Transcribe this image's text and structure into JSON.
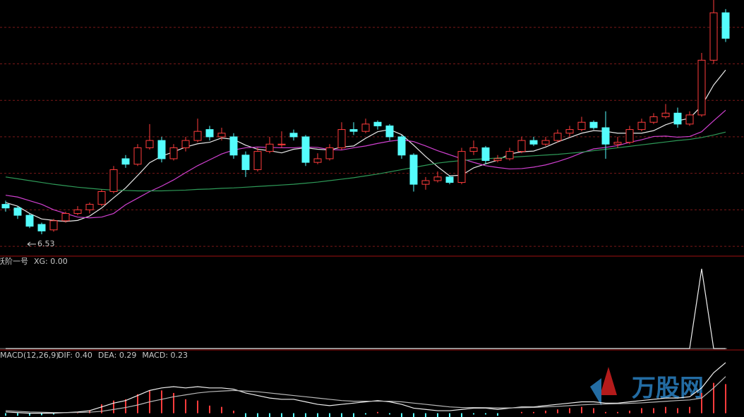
{
  "chart_data": [
    {
      "type": "candlestick",
      "ohlc": [
        [
          7.35,
          7.45,
          7.15,
          7.25
        ],
        [
          7.25,
          7.3,
          6.95,
          7.05
        ],
        [
          7.05,
          7.1,
          6.7,
          6.75
        ],
        [
          6.8,
          6.85,
          6.53,
          6.62
        ],
        [
          6.65,
          6.95,
          6.6,
          6.9
        ],
        [
          6.9,
          7.15,
          6.85,
          7.1
        ],
        [
          7.1,
          7.3,
          7.05,
          7.2
        ],
        [
          7.2,
          7.4,
          7.1,
          7.35
        ],
        [
          7.35,
          7.75,
          7.3,
          7.7
        ],
        [
          7.7,
          8.4,
          7.65,
          8.3
        ],
        [
          8.6,
          8.7,
          8.35,
          8.45
        ],
        [
          8.45,
          9.0,
          8.4,
          8.9
        ],
        [
          8.9,
          9.55,
          8.85,
          9.1
        ],
        [
          9.1,
          9.2,
          8.5,
          8.6
        ],
        [
          8.6,
          9.0,
          8.55,
          8.9
        ],
        [
          8.9,
          9.2,
          8.8,
          9.1
        ],
        [
          9.1,
          9.7,
          9.05,
          9.35
        ],
        [
          9.4,
          9.5,
          9.1,
          9.2
        ],
        [
          9.2,
          9.45,
          9.1,
          9.3
        ],
        [
          9.2,
          9.3,
          8.6,
          8.7
        ],
        [
          8.7,
          8.8,
          8.1,
          8.3
        ],
        [
          8.3,
          8.9,
          8.25,
          8.8
        ],
        [
          8.8,
          9.2,
          8.75,
          9.0
        ],
        [
          8.98,
          9.35,
          8.9,
          9.0
        ],
        [
          9.3,
          9.4,
          9.1,
          9.2
        ],
        [
          9.2,
          9.25,
          8.4,
          8.5
        ],
        [
          8.5,
          8.75,
          8.45,
          8.6
        ],
        [
          8.6,
          9.0,
          8.55,
          8.9
        ],
        [
          8.9,
          9.6,
          8.85,
          9.4
        ],
        [
          9.4,
          9.6,
          9.25,
          9.35
        ],
        [
          9.35,
          9.7,
          9.3,
          9.55
        ],
        [
          9.6,
          9.65,
          9.4,
          9.5
        ],
        [
          9.5,
          9.55,
          9.1,
          9.2
        ],
        [
          9.2,
          9.25,
          8.6,
          8.7
        ],
        [
          8.7,
          8.75,
          7.7,
          7.9
        ],
        [
          7.9,
          8.1,
          7.75,
          8.0
        ],
        [
          8.0,
          8.25,
          7.95,
          8.1
        ],
        [
          8.1,
          8.15,
          7.9,
          7.95
        ],
        [
          7.95,
          8.9,
          7.9,
          8.8
        ],
        [
          8.8,
          9.1,
          8.7,
          8.9
        ],
        [
          8.9,
          8.95,
          8.45,
          8.55
        ],
        [
          8.55,
          8.7,
          8.5,
          8.6
        ],
        [
          8.6,
          8.9,
          8.55,
          8.8
        ],
        [
          8.8,
          9.2,
          8.75,
          9.1
        ],
        [
          9.1,
          9.2,
          8.95,
          9.0
        ],
        [
          9.0,
          9.2,
          8.95,
          9.1
        ],
        [
          9.1,
          9.4,
          9.05,
          9.3
        ],
        [
          9.3,
          9.5,
          9.2,
          9.4
        ],
        [
          9.4,
          9.75,
          9.35,
          9.6
        ],
        [
          9.6,
          9.65,
          9.4,
          9.45
        ],
        [
          9.45,
          9.9,
          8.6,
          9.0
        ],
        [
          9.0,
          9.2,
          8.9,
          9.05
        ],
        [
          9.05,
          9.5,
          9.0,
          9.4
        ],
        [
          9.4,
          9.7,
          9.35,
          9.6
        ],
        [
          9.6,
          9.85,
          9.55,
          9.75
        ],
        [
          9.75,
          10.1,
          9.7,
          9.85
        ],
        [
          9.85,
          10.0,
          9.45,
          9.55
        ],
        [
          9.55,
          9.9,
          9.5,
          9.8
        ],
        [
          9.8,
          11.5,
          9.75,
          11.3
        ],
        [
          11.3,
          12.95,
          11.2,
          12.6
        ],
        [
          12.6,
          12.7,
          11.8,
          11.9
        ]
      ],
      "up_color": "#ff3c3c",
      "down_color": "#54fcfc",
      "series": [
        {
          "color": "#e8e8e8",
          "values": [
            7.4,
            7.3,
            7.1,
            6.95,
            6.91,
            6.88,
            6.91,
            7.03,
            7.25,
            7.53,
            7.8,
            8.14,
            8.49,
            8.67,
            8.79,
            8.92,
            9.01,
            9.05,
            9.17,
            9.13,
            8.97,
            8.86,
            8.82,
            8.76,
            8.86,
            8.9,
            8.86,
            8.84,
            8.92,
            8.95,
            9.16,
            9.34,
            9.4,
            9.26,
            8.97,
            8.66,
            8.38,
            8.13,
            8.15,
            8.35,
            8.46,
            8.56,
            8.73,
            8.79,
            8.81,
            8.92,
            9.06,
            9.18,
            9.3,
            9.37,
            9.35,
            9.3,
            9.3,
            9.3,
            9.37,
            9.53,
            9.64,
            9.71,
            10.05,
            10.62,
            11.03
          ]
        },
        {
          "color": "#d040d0",
          "values": [
            7.6,
            7.55,
            7.45,
            7.35,
            7.2,
            7.1,
            7.0,
            6.98,
            7.0,
            7.1,
            7.34,
            7.52,
            7.7,
            7.85,
            8.02,
            8.22,
            8.41,
            8.57,
            8.73,
            8.84,
            8.9,
            8.92,
            8.91,
            8.9,
            8.9,
            8.92,
            8.91,
            8.85,
            8.84,
            8.9,
            8.95,
            9.02,
            9.08,
            9.12,
            9.07,
            8.95,
            8.82,
            8.71,
            8.6,
            8.5,
            8.41,
            8.36,
            8.32,
            8.33,
            8.37,
            8.43,
            8.52,
            8.63,
            8.76,
            8.87,
            8.91,
            8.96,
            9.05,
            9.12,
            9.21,
            9.22,
            9.19,
            9.21,
            9.34,
            9.64,
            9.93
          ]
        },
        {
          "color": "#2e9a58",
          "values": [
            8.1,
            8.05,
            8.0,
            7.95,
            7.9,
            7.86,
            7.82,
            7.79,
            7.76,
            7.74,
            7.73,
            7.72,
            7.72,
            7.72,
            7.73,
            7.74,
            7.76,
            7.77,
            7.79,
            7.8,
            7.82,
            7.84,
            7.86,
            7.88,
            7.9,
            7.93,
            7.96,
            8.0,
            8.04,
            8.08,
            8.13,
            8.18,
            8.24,
            8.3,
            8.36,
            8.42,
            8.48,
            8.52,
            8.55,
            8.58,
            8.6,
            8.62,
            8.64,
            8.66,
            8.68,
            8.7,
            8.72,
            8.75,
            8.78,
            8.82,
            8.86,
            8.9,
            8.94,
            8.98,
            9.02,
            9.06,
            9.1,
            9.13,
            9.18,
            9.25,
            9.33
          ]
        }
      ],
      "low_annotation": 6.53,
      "ylim": [
        5.95,
        12.95
      ],
      "yticks": [
        6.2,
        7.2,
        8.2,
        9.2,
        10.2,
        11.2,
        12.2
      ],
      "grid": true
    },
    {
      "type": "line",
      "title": "跃阶一号",
      "legend": "XG: 0.00",
      "series": [
        {
          "color": "#f0f0f0",
          "values": [
            0,
            0,
            0,
            0,
            0,
            0,
            0,
            0,
            0,
            0,
            0,
            0,
            0,
            0,
            0,
            0,
            0,
            0,
            0,
            0,
            0,
            0,
            0,
            0,
            0,
            0,
            0,
            0,
            0,
            0,
            0,
            0,
            0,
            0,
            0,
            0,
            0,
            0,
            0,
            0,
            0,
            0,
            0,
            0,
            0,
            0,
            0,
            0,
            0,
            0,
            0,
            0,
            0,
            0,
            0,
            0,
            0,
            0,
            1,
            0,
            0
          ]
        }
      ],
      "ylim": [
        0,
        1
      ]
    },
    {
      "type": "macd",
      "title": "MACD(12,26,9)",
      "legend": [
        {
          "text": "DIF: 0.40",
          "color": "#d8d8d8"
        },
        {
          "text": "DEA: 0.29",
          "color": "#d8d8d8"
        },
        {
          "text": "MACD: 0.23",
          "color": "#d040d0"
        }
      ],
      "histogram": {
        "up_color": "#ff3c3c",
        "down_color": "#54fcfc",
        "values": [
          -0.02,
          -0.02,
          -0.02,
          -0.016,
          -0.01,
          0,
          0.008,
          0.024,
          0.07,
          0.1,
          0.11,
          0.15,
          0.18,
          0.18,
          0.16,
          0.11,
          0.1,
          0.06,
          0.05,
          0.02,
          -0.03,
          -0.06,
          -0.08,
          -0.08,
          -0.06,
          -0.08,
          -0.1,
          -0.1,
          -0.06,
          -0.03,
          -0.01,
          0.01,
          -0.01,
          -0.04,
          -0.08,
          -0.08,
          -0.08,
          -0.06,
          -0.03,
          -0.01,
          -0.01,
          -0.02,
          0,
          0.01,
          0.01,
          0.02,
          0.03,
          0.04,
          0.05,
          0.04,
          0.01,
          0.01,
          0.02,
          0.04,
          0.04,
          0.05,
          0.04,
          0.05,
          0.16,
          0.24,
          0.23
        ]
      },
      "series": [
        {
          "color": "#f0f0f0",
          "values": [
            0.01,
            0.005,
            0,
            0,
            0,
            0.005,
            0.01,
            0.02,
            0.05,
            0.08,
            0.1,
            0.14,
            0.18,
            0.2,
            0.21,
            0.2,
            0.21,
            0.2,
            0.2,
            0.19,
            0.16,
            0.14,
            0.12,
            0.11,
            0.11,
            0.09,
            0.07,
            0.06,
            0.07,
            0.08,
            0.09,
            0.1,
            0.09,
            0.07,
            0.04,
            0.03,
            0.02,
            0.02,
            0.03,
            0.04,
            0.04,
            0.03,
            0.04,
            0.05,
            0.05,
            0.06,
            0.07,
            0.08,
            0.09,
            0.09,
            0.08,
            0.08,
            0.09,
            0.1,
            0.11,
            0.12,
            0.12,
            0.13,
            0.2,
            0.32,
            0.4
          ]
        },
        {
          "color": "#b8b8b8",
          "values": [
            0.02,
            0.015,
            0.01,
            0.008,
            0.005,
            0.005,
            0.006,
            0.008,
            0.015,
            0.03,
            0.045,
            0.065,
            0.09,
            0.11,
            0.13,
            0.145,
            0.16,
            0.17,
            0.175,
            0.18,
            0.175,
            0.17,
            0.16,
            0.15,
            0.14,
            0.13,
            0.12,
            0.11,
            0.1,
            0.095,
            0.095,
            0.095,
            0.095,
            0.09,
            0.08,
            0.07,
            0.06,
            0.05,
            0.045,
            0.045,
            0.044,
            0.042,
            0.042,
            0.044,
            0.046,
            0.05,
            0.054,
            0.06,
            0.066,
            0.07,
            0.073,
            0.075,
            0.078,
            0.082,
            0.088,
            0.094,
            0.1,
            0.105,
            0.12,
            0.2,
            0.29
          ]
        }
      ],
      "ylim": [
        -0.03,
        0.45
      ]
    }
  ],
  "watermark": "万股网"
}
